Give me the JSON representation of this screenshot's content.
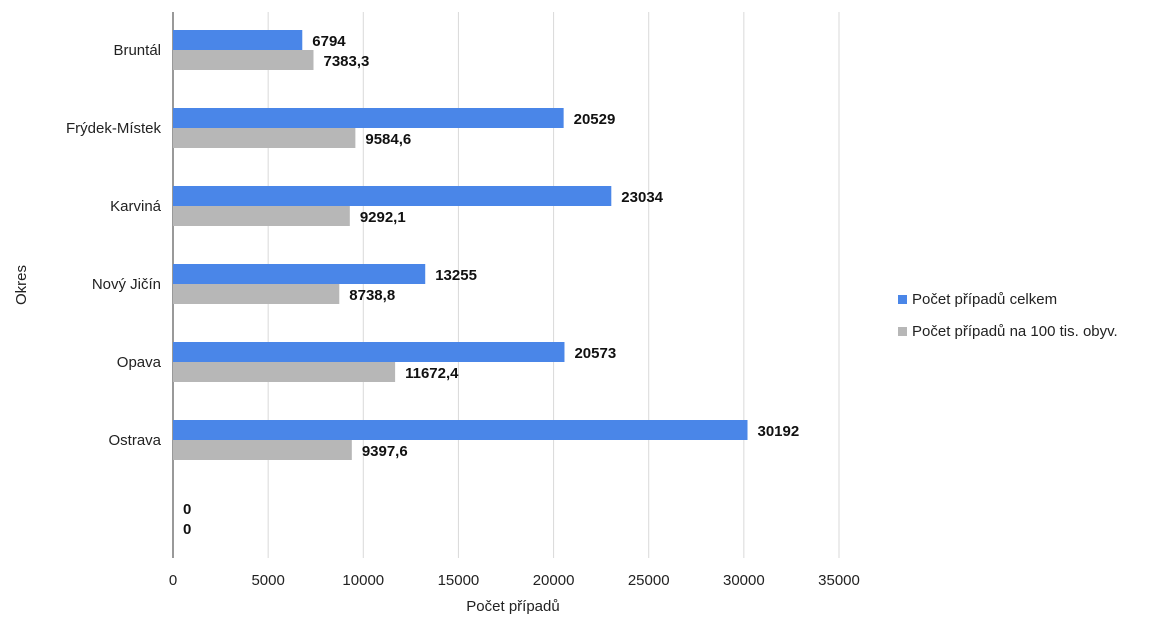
{
  "chart_data": {
    "type": "bar",
    "orientation": "horizontal",
    "xlabel": "Počet případů",
    "ylabel": "Okres",
    "xlim": [
      0,
      35000
    ],
    "xticks": [
      0,
      5000,
      10000,
      15000,
      20000,
      25000,
      30000,
      35000
    ],
    "grid": "vertical",
    "legend_position": "right",
    "categories": [
      "Bruntál",
      "Frýdek-Místek",
      "Karviná",
      "Nový Jičín",
      "Opava",
      "Ostrava",
      ""
    ],
    "series": [
      {
        "name": "Počet případů celkem",
        "color": "#4a86e8",
        "values": [
          6794,
          20529,
          23034,
          13255,
          20573,
          30192,
          0
        ],
        "labels": [
          "6794",
          "20529",
          "23034",
          "13255",
          "20573",
          "30192",
          "0"
        ]
      },
      {
        "name": "Počet případů na 100 tis. obyv.",
        "color": "#b7b7b7",
        "values": [
          7383.3,
          9584.6,
          9292.1,
          8738.8,
          11672.4,
          9397.6,
          0
        ],
        "labels": [
          "7383,3",
          "9584,6",
          "9292,1",
          "8738,8",
          "11672,4",
          "9397,6",
          "0"
        ]
      }
    ]
  }
}
